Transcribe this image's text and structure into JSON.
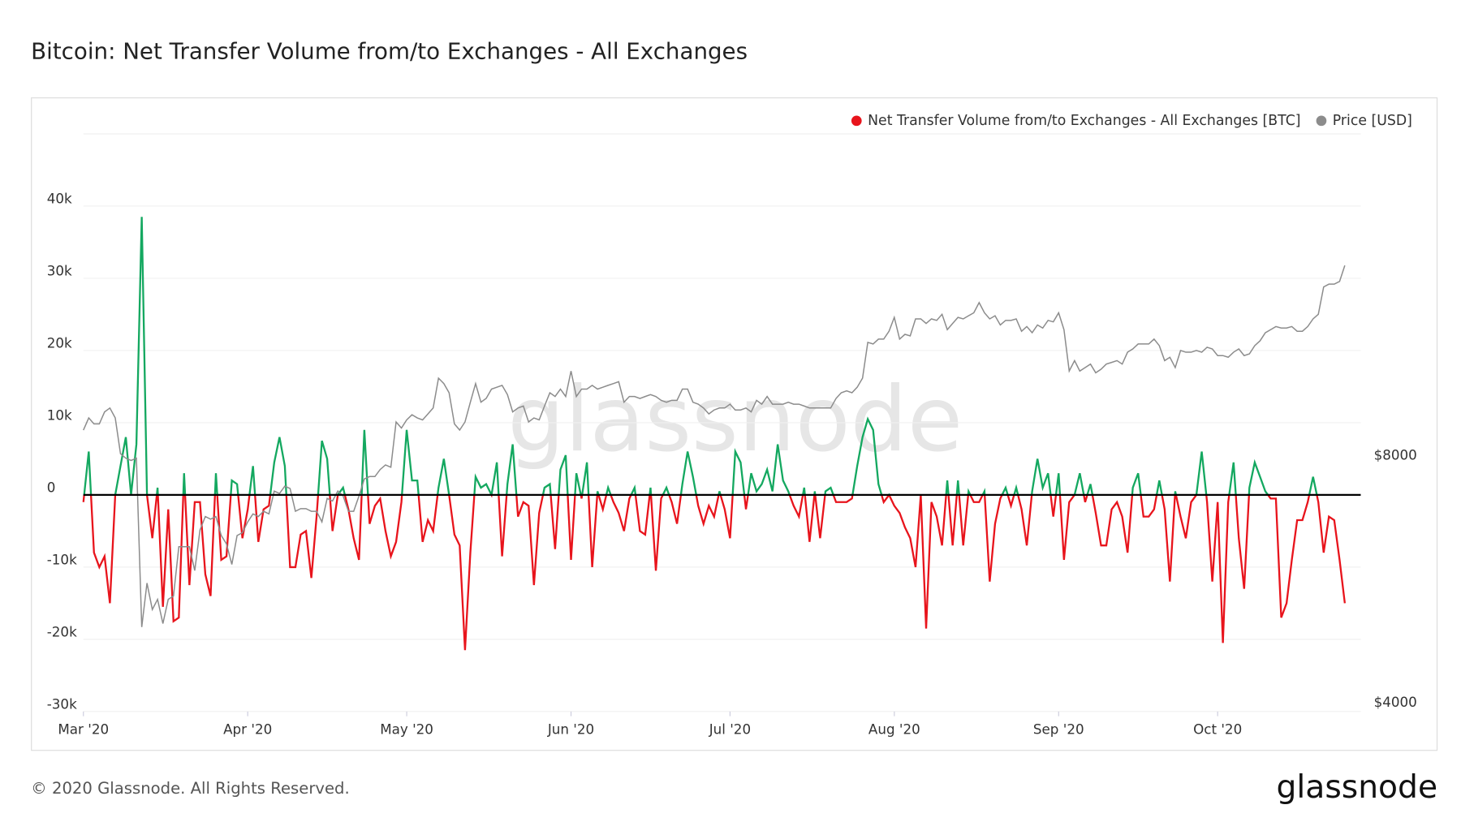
{
  "chart_data": {
    "type": "line",
    "title": "Bitcoin: Net Transfer Volume from/to Exchanges - All Exchanges",
    "watermark": "glassnode",
    "footer": "© 2020 Glassnode. All Rights Reserved.",
    "logo": "glassnode",
    "legend": "top-right",
    "x": [
      0,
      1,
      2,
      3,
      4,
      5,
      6,
      7,
      8,
      9,
      10,
      11,
      12,
      13,
      14,
      15,
      16,
      17,
      18,
      19,
      20,
      21,
      22,
      23,
      24,
      25,
      26,
      27,
      28,
      29,
      30,
      31,
      32,
      33,
      34,
      35,
      36,
      37,
      38,
      39,
      40,
      41,
      42,
      43,
      44,
      45,
      46,
      47,
      48,
      49,
      50,
      51,
      52,
      53,
      54,
      55,
      56,
      57,
      58,
      59,
      60,
      61,
      62,
      63,
      64,
      65,
      66,
      67,
      68,
      69,
      70,
      71,
      72,
      73,
      74,
      75,
      76,
      77,
      78,
      79,
      80,
      81,
      82,
      83,
      84,
      85,
      86,
      87,
      88,
      89,
      90,
      91,
      92,
      93,
      94,
      95,
      96,
      97,
      98,
      99,
      100,
      101,
      102,
      103,
      104,
      105,
      106,
      107,
      108,
      109,
      110,
      111,
      112,
      113,
      114,
      115,
      116,
      117,
      118,
      119,
      120,
      121,
      122,
      123,
      124,
      125,
      126,
      127,
      128,
      129,
      130,
      131,
      132,
      133,
      134,
      135,
      136,
      137,
      138,
      139,
      140,
      141,
      142,
      143,
      144,
      145,
      146,
      147,
      148,
      149,
      150,
      151,
      152,
      153,
      154,
      155,
      156,
      157,
      158,
      159,
      160,
      161,
      162,
      163,
      164,
      165,
      166,
      167,
      168,
      169,
      170,
      171,
      172,
      173,
      174,
      175,
      176,
      177,
      178,
      179,
      180,
      181,
      182,
      183,
      184,
      185,
      186,
      187,
      188,
      189,
      190,
      191,
      192,
      193,
      194,
      195,
      196,
      197,
      198,
      199,
      200,
      201,
      202,
      203,
      204,
      205,
      206,
      207,
      208,
      209,
      210,
      211,
      212,
      213,
      214,
      215,
      216,
      217,
      218,
      219,
      220,
      221,
      222,
      223,
      224,
      225,
      226,
      227,
      228,
      229,
      230,
      231,
      232,
      233,
      234,
      235,
      236,
      237,
      238
    ],
    "xlim": [
      0,
      241
    ],
    "xticks": [
      {
        "value": 0,
        "label": "Mar '20"
      },
      {
        "value": 31,
        "label": "Apr '20"
      },
      {
        "value": 61,
        "label": "May '20"
      },
      {
        "value": 92,
        "label": "Jun '20"
      },
      {
        "value": 122,
        "label": "Jul '20"
      },
      {
        "value": 153,
        "label": "Aug '20"
      },
      {
        "value": 184,
        "label": "Sep '20"
      },
      {
        "value": 214,
        "label": "Oct '20"
      }
    ],
    "ylim": [
      -30000,
      50000
    ],
    "yticks": [
      {
        "value": -30000,
        "label": "-30k"
      },
      {
        "value": -20000,
        "label": "-20k"
      },
      {
        "value": -10000,
        "label": "-10k"
      },
      0,
      {
        "value": 10000,
        "label": "10k"
      },
      {
        "value": 20000,
        "label": "20k"
      },
      {
        "value": 30000,
        "label": "30k"
      },
      {
        "value": 40000,
        "label": "40k"
      }
    ],
    "y2lim": [
      3906,
      19740
    ],
    "y2_log": true,
    "y2ticks": [
      {
        "value": 4000,
        "label": "$4000"
      },
      {
        "value": 8000,
        "label": "$8000"
      }
    ],
    "grid": true,
    "series": [
      {
        "name": "Net Transfer Volume from/to Exchanges - All Exchanges [BTC]",
        "color": "#e8141c",
        "positive_color": "#14a860",
        "values": [
          -1000,
          6000,
          -8000,
          -10000,
          -8500,
          -15000,
          0,
          4000,
          8000,
          0,
          7000,
          38500,
          0,
          -6000,
          1000,
          -15500,
          -2000,
          -17500,
          -17000,
          3000,
          -12500,
          -1000,
          -1000,
          -11000,
          -14000,
          3000,
          -9000,
          -8500,
          2000,
          1500,
          -6000,
          -2000,
          4000,
          -6500,
          -2000,
          -1500,
          4500,
          8000,
          4000,
          -10000,
          -10000,
          -5500,
          -5000,
          -11500,
          -3000,
          7500,
          5000,
          -5000,
          0,
          1000,
          -2000,
          -6000,
          -9000,
          9000,
          -4000,
          -1500,
          -500,
          -5000,
          -8500,
          -6500,
          -1000,
          9000,
          2000,
          2000,
          -6500,
          -3500,
          -5000,
          1000,
          5000,
          0,
          -5500,
          -7000,
          -21500,
          -8000,
          2500,
          1000,
          1500,
          0,
          4500,
          -8500,
          1500,
          7000,
          -3000,
          -1000,
          -1500,
          -12500,
          -2500,
          1000,
          1500,
          -7500,
          3500,
          5500,
          -9000,
          3000,
          -500,
          4500,
          -10000,
          500,
          -2000,
          1000,
          -1000,
          -2500,
          -5000,
          -500,
          1000,
          -5000,
          -5500,
          1000,
          -10500,
          -500,
          1000,
          -1000,
          -4000,
          1500,
          6000,
          2500,
          -1500,
          -4000,
          -1500,
          -3000,
          500,
          -2000,
          -6000,
          6000,
          4500,
          -2000,
          3000,
          500,
          1500,
          3500,
          500,
          7000,
          2000,
          500,
          -1500,
          -3000,
          1000,
          -6500,
          500,
          -6000,
          500,
          1000,
          -1000,
          -1000,
          -1000,
          -500,
          4000,
          8000,
          10500,
          9000,
          1500,
          -1000,
          0,
          -1500,
          -2500,
          -4500,
          -6000,
          -10000,
          0,
          -18500,
          -1000,
          -3000,
          -7000,
          2000,
          -7000,
          2000,
          -7000,
          500,
          -1000,
          -1000,
          500,
          -12000,
          -4000,
          -500,
          1000,
          -1500,
          1000,
          -2000,
          -7000,
          500,
          5000,
          1000,
          3000,
          -3000,
          3000,
          -9000,
          -1000,
          0,
          3000,
          -1000,
          1500,
          -2500,
          -7000,
          -7000,
          -2000,
          -1000,
          -3000,
          -8000,
          1000,
          3000,
          -3000,
          -3000,
          -2000,
          2000,
          -2000,
          -12000,
          500,
          -3000,
          -6000,
          -1000,
          0,
          6000,
          -1000,
          -12000,
          -1000,
          -20500,
          -1000,
          4500,
          -6000,
          -13000,
          1000,
          4500,
          2500,
          500,
          -500,
          -500,
          -17000,
          -15000,
          -9000,
          -3500,
          -3500,
          -1000,
          2500,
          -1000,
          -8000,
          -3000,
          -3500,
          -9000,
          -15000
        ]
      },
      {
        "name": "Price [USD]",
        "color": "#8c8c8c",
        "axis": "y2",
        "values": [
          8600,
          8900,
          8750,
          8750,
          9050,
          9150,
          8900,
          8050,
          7950,
          7900,
          7950,
          4950,
          5600,
          5200,
          5350,
          5000,
          5350,
          5400,
          6200,
          6200,
          6200,
          5800,
          6500,
          6750,
          6700,
          6750,
          6400,
          6250,
          5900,
          6400,
          6450,
          6650,
          6800,
          6750,
          6850,
          6800,
          7250,
          7200,
          7350,
          7300,
          6850,
          6900,
          6900,
          6850,
          6850,
          6650,
          7100,
          7050,
          7250,
          7150,
          6850,
          6850,
          7150,
          7500,
          7550,
          7550,
          7700,
          7800,
          7750,
          8800,
          8650,
          8850,
          8980,
          8900,
          8850,
          9000,
          9150,
          9950,
          9800,
          9550,
          8750,
          8600,
          8800,
          9300,
          9800,
          9300,
          9400,
          9650,
          9700,
          9750,
          9500,
          9050,
          9150,
          9200,
          8800,
          8900,
          8850,
          9200,
          9550,
          9450,
          9650,
          9450,
          10150,
          9450,
          9650,
          9650,
          9750,
          9650,
          9700,
          9750,
          9800,
          9850,
          9300,
          9450,
          9450,
          9400,
          9450,
          9500,
          9450,
          9350,
          9300,
          9350,
          9350,
          9650,
          9650,
          9300,
          9250,
          9150,
          9000,
          9100,
          9150,
          9150,
          9250,
          9100,
          9100,
          9150,
          9050,
          9350,
          9250,
          9450,
          9250,
          9250,
          9250,
          9300,
          9250,
          9250,
          9200,
          9150,
          9150,
          9150,
          9150,
          9150,
          9400,
          9550,
          9600,
          9550,
          9700,
          9950,
          11000,
          10950,
          11100,
          11100,
          11350,
          11800,
          11100,
          11250,
          11200,
          11750,
          11750,
          11600,
          11750,
          11700,
          11900,
          11400,
          11600,
          11800,
          11750,
          11850,
          11950,
          12300,
          11950,
          11750,
          11850,
          11550,
          11700,
          11700,
          11750,
          11350,
          11500,
          11300,
          11550,
          11450,
          11700,
          11650,
          11950,
          11400,
          10150,
          10450,
          10150,
          10250,
          10350,
          10100,
          10200,
          10350,
          10400,
          10450,
          10350,
          10700,
          10800,
          10950,
          10950,
          10950,
          11100,
          10900,
          10450,
          10550,
          10250,
          10750,
          10700,
          10700,
          10750,
          10700,
          10850,
          10800,
          10600,
          10600,
          10550,
          10700,
          10800,
          10600,
          10650,
          10900,
          11050,
          11300,
          11400,
          11500,
          11450,
          11450,
          11500,
          11350,
          11350,
          11500,
          11750,
          11900,
          12850,
          12950,
          12950,
          13050,
          13650
        ]
      }
    ]
  }
}
